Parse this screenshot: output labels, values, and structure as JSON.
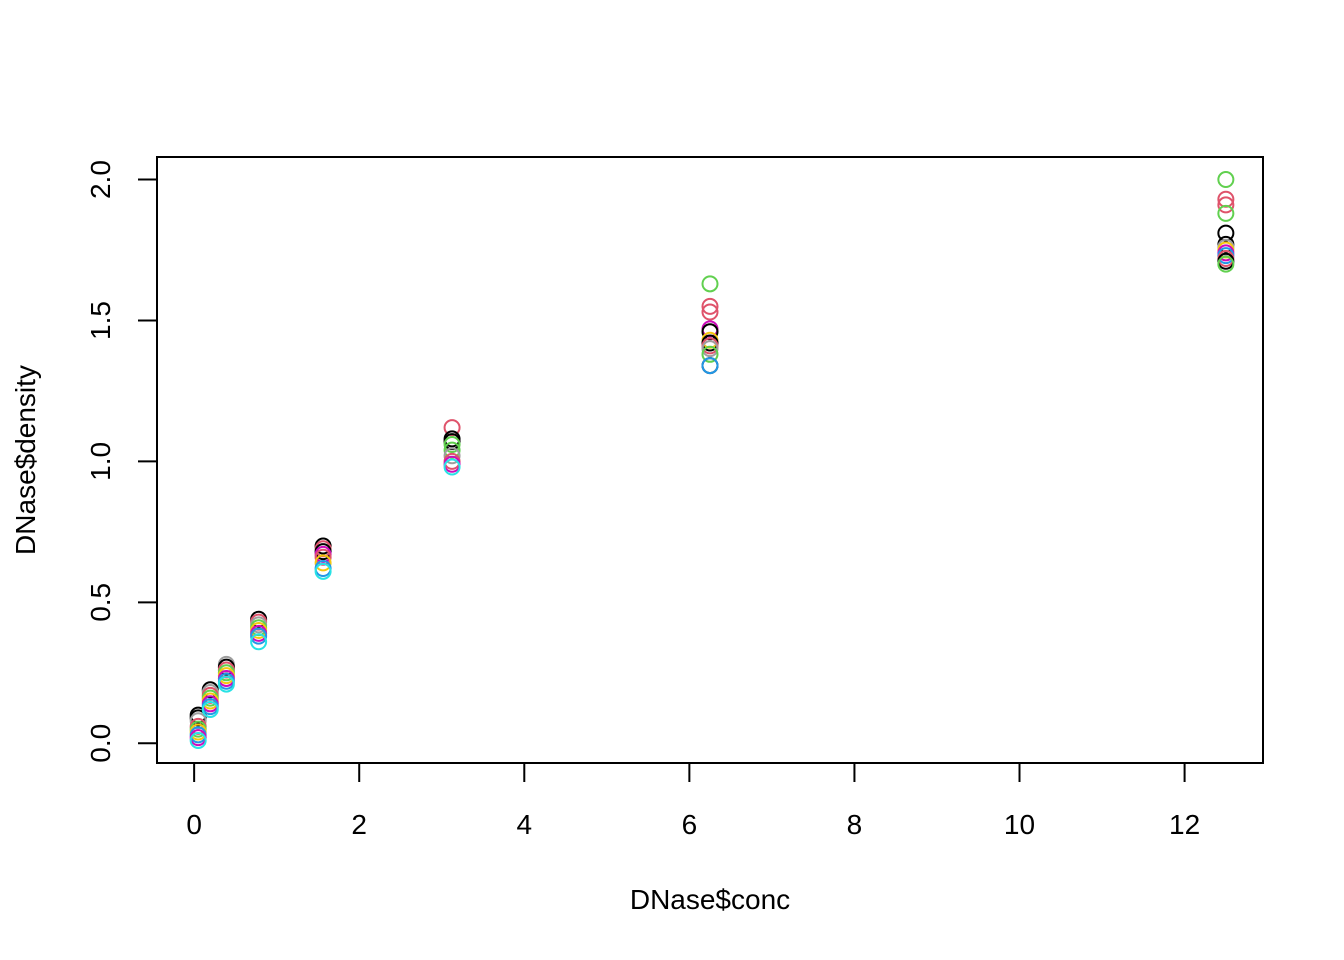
{
  "chart_data": {
    "type": "scatter",
    "title": "",
    "xlabel": "DNase$conc",
    "ylabel": "DNase$density",
    "xlim": [
      -0.45,
      12.95
    ],
    "ylim": [
      -0.07,
      2.08
    ],
    "x_ticks": [
      0,
      2,
      4,
      6,
      8,
      10,
      12
    ],
    "y_ticks": [
      0.0,
      0.5,
      1.0,
      1.5,
      2.0
    ],
    "x_tick_labels": [
      "0",
      "2",
      "4",
      "6",
      "8",
      "10",
      "12"
    ],
    "y_tick_labels": [
      "0.0",
      "0.5",
      "1.0",
      "1.5",
      "2.0"
    ],
    "grid": false,
    "legend": "none",
    "marker": "open-circle",
    "palette": [
      "#000000",
      "#DF536B",
      "#61D04F",
      "#2297E6",
      "#28E2E5",
      "#CD0BBC",
      "#F5C710",
      "#9E9E9E"
    ],
    "points": [
      {
        "x": 0.04883,
        "y": 0.1,
        "c": 0
      },
      {
        "x": 0.04883,
        "y": 0.09,
        "c": 0
      },
      {
        "x": 0.04883,
        "y": 0.08,
        "c": 7
      },
      {
        "x": 0.04883,
        "y": 0.06,
        "c": 1
      },
      {
        "x": 0.04883,
        "y": 0.05,
        "c": 2
      },
      {
        "x": 0.04883,
        "y": 0.04,
        "c": 6
      },
      {
        "x": 0.04883,
        "y": 0.03,
        "c": 3
      },
      {
        "x": 0.04883,
        "y": 0.02,
        "c": 5
      },
      {
        "x": 0.04883,
        "y": 0.01,
        "c": 4
      },
      {
        "x": 0.1953,
        "y": 0.19,
        "c": 0
      },
      {
        "x": 0.1953,
        "y": 0.18,
        "c": 7
      },
      {
        "x": 0.1953,
        "y": 0.17,
        "c": 1
      },
      {
        "x": 0.1953,
        "y": 0.16,
        "c": 2
      },
      {
        "x": 0.1953,
        "y": 0.15,
        "c": 6
      },
      {
        "x": 0.1953,
        "y": 0.14,
        "c": 5
      },
      {
        "x": 0.1953,
        "y": 0.13,
        "c": 3
      },
      {
        "x": 0.1953,
        "y": 0.12,
        "c": 4
      },
      {
        "x": 0.3906,
        "y": 0.28,
        "c": 7
      },
      {
        "x": 0.3906,
        "y": 0.27,
        "c": 0
      },
      {
        "x": 0.3906,
        "y": 0.26,
        "c": 1
      },
      {
        "x": 0.3906,
        "y": 0.25,
        "c": 2
      },
      {
        "x": 0.3906,
        "y": 0.24,
        "c": 6
      },
      {
        "x": 0.3906,
        "y": 0.23,
        "c": 5
      },
      {
        "x": 0.3906,
        "y": 0.22,
        "c": 3
      },
      {
        "x": 0.3906,
        "y": 0.21,
        "c": 4
      },
      {
        "x": 0.7813,
        "y": 0.44,
        "c": 0
      },
      {
        "x": 0.7813,
        "y": 0.43,
        "c": 1
      },
      {
        "x": 0.7813,
        "y": 0.42,
        "c": 7
      },
      {
        "x": 0.7813,
        "y": 0.41,
        "c": 2
      },
      {
        "x": 0.7813,
        "y": 0.4,
        "c": 6
      },
      {
        "x": 0.7813,
        "y": 0.39,
        "c": 5
      },
      {
        "x": 0.7813,
        "y": 0.38,
        "c": 3
      },
      {
        "x": 0.7813,
        "y": 0.36,
        "c": 4
      },
      {
        "x": 1.5625,
        "y": 0.7,
        "c": 0
      },
      {
        "x": 1.5625,
        "y": 0.69,
        "c": 1
      },
      {
        "x": 1.5625,
        "y": 0.68,
        "c": 0
      },
      {
        "x": 1.5625,
        "y": 0.67,
        "c": 5
      },
      {
        "x": 1.5625,
        "y": 0.66,
        "c": 1
      },
      {
        "x": 1.5625,
        "y": 0.64,
        "c": 6
      },
      {
        "x": 1.5625,
        "y": 0.62,
        "c": 3
      },
      {
        "x": 1.5625,
        "y": 0.61,
        "c": 4
      },
      {
        "x": 3.125,
        "y": 1.12,
        "c": 1
      },
      {
        "x": 3.125,
        "y": 1.08,
        "c": 0
      },
      {
        "x": 3.125,
        "y": 1.07,
        "c": 0
      },
      {
        "x": 3.125,
        "y": 1.06,
        "c": 2
      },
      {
        "x": 3.125,
        "y": 1.04,
        "c": 2
      },
      {
        "x": 3.125,
        "y": 1.02,
        "c": 7
      },
      {
        "x": 3.125,
        "y": 1.0,
        "c": 1
      },
      {
        "x": 3.125,
        "y": 0.99,
        "c": 5
      },
      {
        "x": 3.125,
        "y": 0.98,
        "c": 4
      },
      {
        "x": 6.25,
        "y": 1.63,
        "c": 2
      },
      {
        "x": 6.25,
        "y": 1.55,
        "c": 1
      },
      {
        "x": 6.25,
        "y": 1.53,
        "c": 1
      },
      {
        "x": 6.25,
        "y": 1.47,
        "c": 5
      },
      {
        "x": 6.25,
        "y": 1.46,
        "c": 0
      },
      {
        "x": 6.25,
        "y": 1.43,
        "c": 6
      },
      {
        "x": 6.25,
        "y": 1.42,
        "c": 0
      },
      {
        "x": 6.25,
        "y": 1.41,
        "c": 1
      },
      {
        "x": 6.25,
        "y": 1.4,
        "c": 7
      },
      {
        "x": 6.25,
        "y": 1.38,
        "c": 2
      },
      {
        "x": 6.25,
        "y": 1.34,
        "c": 0
      },
      {
        "x": 6.25,
        "y": 1.34,
        "c": 3
      },
      {
        "x": 12.5,
        "y": 2.0,
        "c": 2
      },
      {
        "x": 12.5,
        "y": 1.93,
        "c": 1
      },
      {
        "x": 12.5,
        "y": 1.91,
        "c": 1
      },
      {
        "x": 12.5,
        "y": 1.88,
        "c": 2
      },
      {
        "x": 12.5,
        "y": 1.81,
        "c": 0
      },
      {
        "x": 12.5,
        "y": 1.77,
        "c": 0
      },
      {
        "x": 12.5,
        "y": 1.76,
        "c": 7
      },
      {
        "x": 12.5,
        "y": 1.75,
        "c": 6
      },
      {
        "x": 12.5,
        "y": 1.74,
        "c": 5
      },
      {
        "x": 12.5,
        "y": 1.73,
        "c": 3
      },
      {
        "x": 12.5,
        "y": 1.72,
        "c": 1
      },
      {
        "x": 12.5,
        "y": 1.71,
        "c": 0
      },
      {
        "x": 12.5,
        "y": 1.7,
        "c": 2
      }
    ]
  }
}
